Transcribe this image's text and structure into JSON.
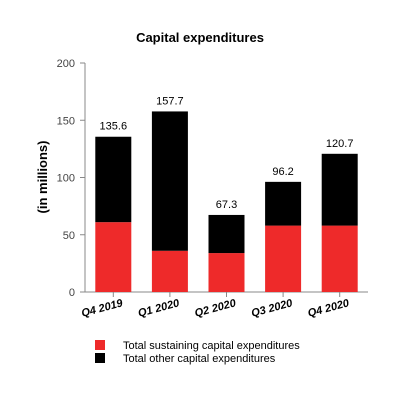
{
  "chart_data": {
    "type": "bar",
    "stacked": true,
    "title": "Capital expenditures",
    "ylabel": "(in millions)",
    "xlabel": "",
    "ylim": [
      0,
      200
    ],
    "yticks": [
      0,
      50,
      100,
      150,
      200
    ],
    "categories": [
      "Q4 2019",
      "Q1 2020",
      "Q2 2020",
      "Q3 2020",
      "Q4 2020"
    ],
    "totals": [
      "135.6",
      "157.7",
      "67.3",
      "96.2",
      "120.7"
    ],
    "series": [
      {
        "name": "Total sustaining capital expenditures",
        "color": "#ee2a2a",
        "values": [
          61,
          36,
          34,
          58,
          58
        ]
      },
      {
        "name": "Total other capital expenditures",
        "color": "#000000",
        "values": [
          74.6,
          121.7,
          33.3,
          38.2,
          62.7
        ]
      }
    ],
    "legend_position": "bottom-left",
    "grid": false
  }
}
